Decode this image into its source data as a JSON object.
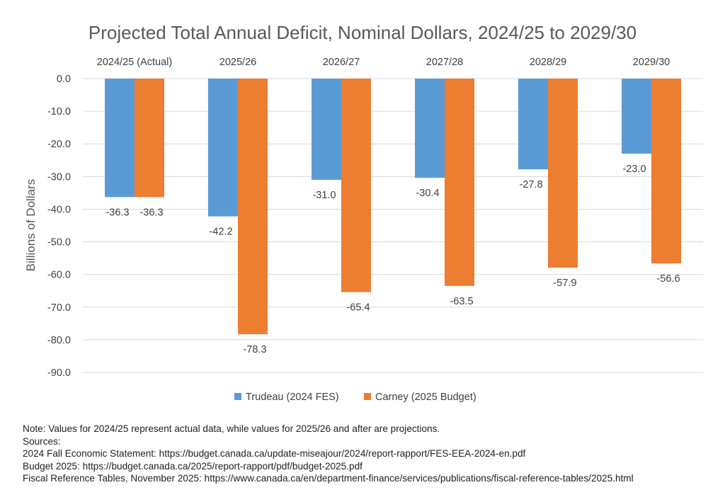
{
  "chart_data": {
    "type": "bar",
    "title": "Projected Total Annual Deficit, Nominal Dollars, 2024/25 to 2029/30",
    "ylabel": "Billions of Dollars",
    "xlabel": "",
    "categories": [
      "2024/25 (Actual)",
      "2025/26",
      "2026/27",
      "2027/28",
      "2028/29",
      "2029/30"
    ],
    "series": [
      {
        "name": "Trudeau (2024 FES)",
        "color": "#5B9BD5",
        "values": [
          -36.3,
          -42.2,
          -31.0,
          -30.4,
          -27.8,
          -23.0
        ]
      },
      {
        "name": "Carney (2025 Budget)",
        "color": "#ED7D31",
        "values": [
          -36.3,
          -78.3,
          -65.4,
          -63.5,
          -57.9,
          -56.6
        ]
      }
    ],
    "ylim": [
      -90,
      0
    ],
    "yticks": [
      "0.0",
      "-10.0",
      "-20.0",
      "-30.0",
      "-40.0",
      "-50.0",
      "-60.0",
      "-70.0",
      "-80.0",
      "-90.0"
    ],
    "grid": true,
    "category_labels_position": "top",
    "legend_position": "bottom"
  },
  "notes": {
    "note": "Note: Values for 2024/25 represent actual data, while values for 2025/26 and after are projections.",
    "sources_heading": "Sources:",
    "sources": [
      "2024 Fall Economic Statement: https://budget.canada.ca/update-miseajour/2024/report-rapport/FES-EEA-2024-en.pdf",
      "Budget 2025: https://budget.canada.ca/2025/report-rapport/pdf/budget-2025.pdf",
      "Fiscal Reference Tables, November 2025: https://www.canada.ca/en/department-finance/services/publications/fiscal-reference-tables/2025.html"
    ]
  }
}
